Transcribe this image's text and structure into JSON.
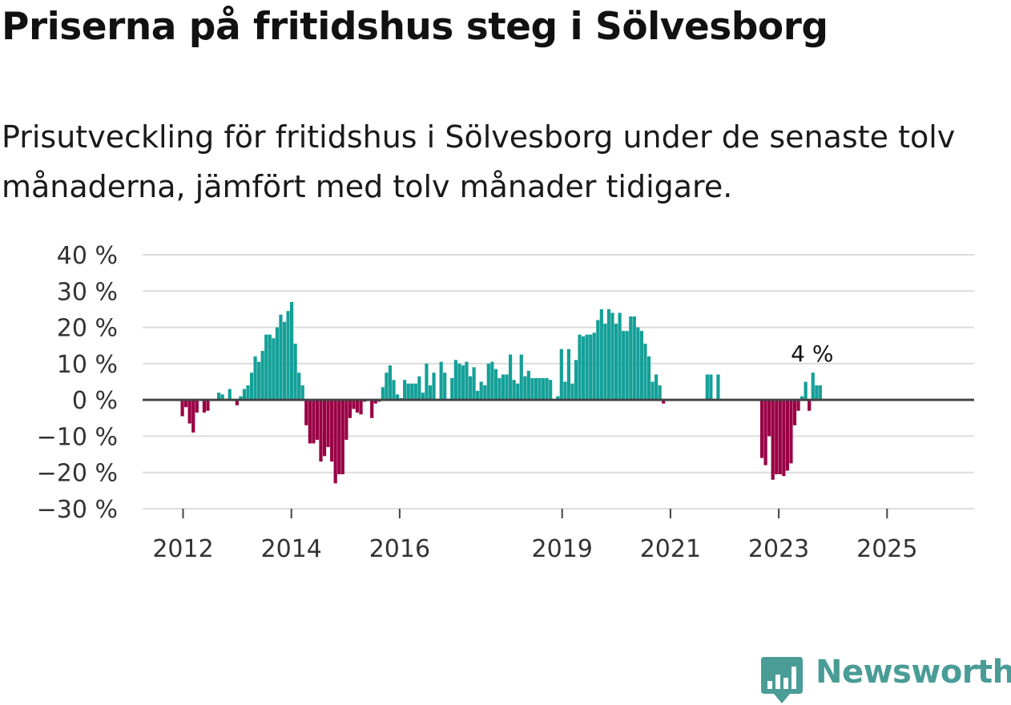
{
  "title": "Priserna på fritidshus steg i Sölvesborg",
  "subtitle": "Prisutveckling för fritidshus i Sölvesborg under de senaste tolv månaderna, jämfört med tolv månader tidigare.",
  "brand": {
    "name": "Newsworthy",
    "color": "#4a9c96"
  },
  "colors": {
    "positive": "#14a098",
    "negative": "#990044",
    "zero_line": "#444444",
    "grid": "#dcdcdc"
  },
  "chart_data": {
    "type": "bar",
    "title": "Priserna på fritidshus steg i Sölvesborg",
    "xlabel": "",
    "ylabel": "",
    "ylim": [
      -30,
      40
    ],
    "yticks": [
      40,
      30,
      20,
      10,
      0,
      -10,
      -20,
      -30
    ],
    "ytick_labels": [
      "40 %",
      "30 %",
      "20 %",
      "10 %",
      "0 %",
      "−10 %",
      "−20 %",
      "−30 %"
    ],
    "xticks": [
      {
        "year": 2012,
        "label": "2012"
      },
      {
        "year": 2014,
        "label": "2014"
      },
      {
        "year": 2016,
        "label": "2016"
      },
      {
        "year": 2019,
        "label": "2019"
      },
      {
        "year": 2021,
        "label": "2021"
      },
      {
        "year": 2023,
        "label": "2023"
      },
      {
        "year": 2025,
        "label": "2025"
      }
    ],
    "start": "2011-06",
    "unit": "%",
    "annotation": {
      "label": "4 %",
      "value": 4
    },
    "values": [
      -4.5,
      -2,
      -6.5,
      -9,
      -3.5,
      0,
      -3.5,
      -3,
      0,
      0,
      2,
      1.5,
      0,
      3,
      0,
      -1.5,
      1,
      3,
      4,
      7.5,
      12,
      10.5,
      13.5,
      18,
      18,
      17,
      20,
      23.5,
      21.5,
      24.5,
      27,
      15.5,
      7.5,
      4,
      -7,
      -12,
      -12,
      -11,
      -17,
      -15.5,
      -13,
      -17,
      -23,
      -20.5,
      -20.5,
      -11,
      -5,
      -2.5,
      -3.5,
      -4,
      -0.5,
      0,
      -5,
      -1,
      -0.5,
      3.5,
      7.5,
      9.5,
      5.5,
      1.5,
      0.5,
      5.5,
      4.5,
      4.5,
      4.5,
      6.5,
      2,
      10,
      4,
      7.5,
      0,
      10.5,
      7.5,
      0,
      6,
      11,
      10,
      9.5,
      10.5,
      6.5,
      9,
      2.5,
      5,
      4,
      10,
      10.5,
      8.5,
      6,
      7,
      7,
      12.5,
      5.5,
      4.5,
      12.5,
      6.5,
      8,
      6,
      6,
      6,
      6,
      6,
      5.5,
      0,
      1,
      14,
      5,
      14,
      4.5,
      11,
      18,
      17.5,
      18,
      18,
      18.5,
      22,
      25,
      21,
      25,
      24,
      21,
      24,
      19,
      19,
      23,
      23,
      20,
      19,
      15.5,
      12,
      5,
      7,
      4,
      -1,
      0,
      0,
      0,
      0,
      0,
      0,
      0,
      0,
      0,
      0,
      0,
      7,
      7,
      0,
      7,
      0,
      0,
      0,
      0,
      0,
      0,
      0,
      0,
      0,
      0,
      0,
      -16,
      -18,
      -10,
      -22,
      -20.5,
      -20.5,
      -21,
      -19.5,
      -17.5,
      -7,
      -3,
      1,
      5,
      -3,
      7.5,
      4,
      4
    ]
  }
}
